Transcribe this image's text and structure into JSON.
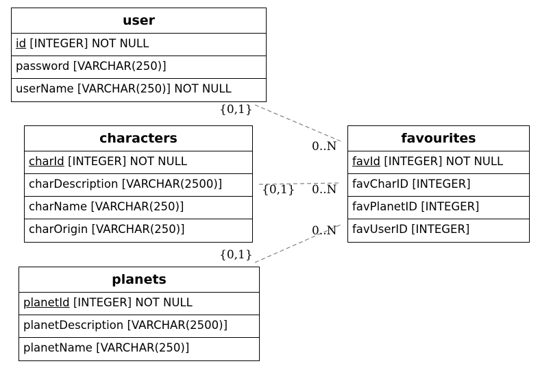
{
  "entities": {
    "user": {
      "title": "user",
      "rows": [
        {
          "pk": "id",
          "rest": " [INTEGER] NOT NULL"
        },
        {
          "text": "password [VARCHAR(250)]"
        },
        {
          "text": "userName [VARCHAR(250)] NOT NULL"
        }
      ]
    },
    "characters": {
      "title": "characters",
      "rows": [
        {
          "pk": "charId",
          "rest": " [INTEGER] NOT NULL"
        },
        {
          "text": "charDescription [VARCHAR(2500)]"
        },
        {
          "text": "charName [VARCHAR(250)]"
        },
        {
          "text": "charOrigin [VARCHAR(250)]"
        }
      ]
    },
    "planets": {
      "title": "planets",
      "rows": [
        {
          "pk": "planetId",
          "rest": " [INTEGER] NOT NULL"
        },
        {
          "text": "planetDescription [VARCHAR(2500)]"
        },
        {
          "text": "planetName [VARCHAR(250)]"
        }
      ]
    },
    "favourites": {
      "title": "favourites",
      "rows": [
        {
          "pk": "favId",
          "rest": " [INTEGER] NOT NULL"
        },
        {
          "text": "favCharID [INTEGER]"
        },
        {
          "text": "favPlanetID [INTEGER]"
        },
        {
          "text": "favUserID [INTEGER]"
        }
      ]
    }
  },
  "relationships": {
    "user_fav": {
      "from_card": "{0,1}",
      "to_card": "0..N"
    },
    "char_fav": {
      "from_card": "{0,1}",
      "to_card": "0..N"
    },
    "planet_fav": {
      "from_card": "{0,1}",
      "to_card": "0..N"
    }
  },
  "colors": {
    "line": "#808080",
    "border": "#000000"
  }
}
